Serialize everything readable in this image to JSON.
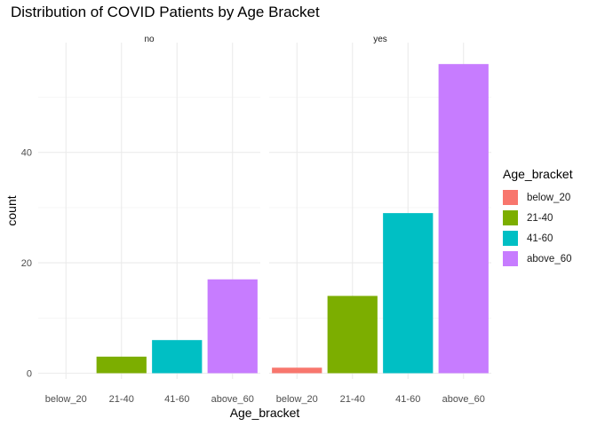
{
  "chart_data": {
    "type": "bar",
    "title": "Distribution of COVID Patients by Age Bracket",
    "xlabel": "Age_bracket",
    "ylabel": "count",
    "categories": [
      "below_20",
      "21-40",
      "41-60",
      "above_60"
    ],
    "yticks": [
      0,
      20,
      40
    ],
    "ylim": [
      0,
      58
    ],
    "grid": true,
    "facets": [
      {
        "label": "no",
        "values": [
          0,
          3,
          6,
          17
        ]
      },
      {
        "label": "yes",
        "values": [
          1,
          14,
          29,
          56
        ]
      }
    ],
    "legend": {
      "title": "Age_bracket",
      "position": "right",
      "items": [
        "below_20",
        "21-40",
        "41-60",
        "above_60"
      ]
    },
    "colors": [
      "#F8766D",
      "#7CAE00",
      "#00BFC4",
      "#C77CFF"
    ]
  }
}
